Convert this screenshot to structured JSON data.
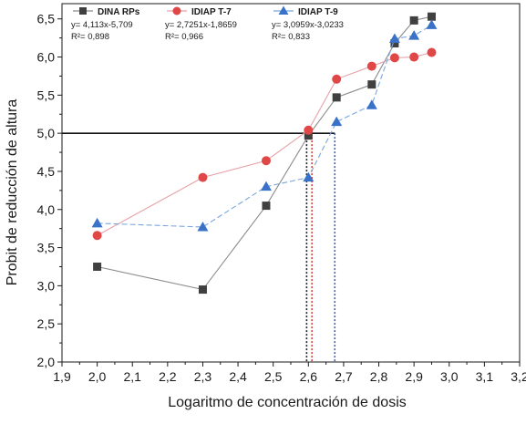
{
  "chart_data": {
    "type": "line",
    "xlabel": "Logaritmo de concentración de dosis",
    "ylabel": "Probit de reducción de altura",
    "xlim": [
      1.9,
      3.2
    ],
    "ylim": [
      2.0,
      6.7
    ],
    "x_ticks": [
      "1,9",
      "2,0",
      "2,1",
      "2,2",
      "2,3",
      "2,4",
      "2,5",
      "2,6",
      "2,7",
      "2,8",
      "2,9",
      "3,0",
      "3,1",
      "3,2"
    ],
    "y_ticks": [
      "2,0",
      "2,5",
      "3,0",
      "3,5",
      "4,0",
      "4,5",
      "5,0",
      "5,5",
      "6,0",
      "6,5"
    ],
    "grid": false,
    "legend_position": "top",
    "reference_line_y": 5.0,
    "series": [
      {
        "name": "DINA RPs",
        "equation": "y= 4,113x-5,709",
        "r2": "R²= 0,898",
        "marker": "square",
        "color": "#404040",
        "line_color": "#8c8c8c",
        "x": [
          2.0,
          2.3,
          2.48,
          2.6,
          2.68,
          2.78,
          2.845,
          2.9,
          2.95
        ],
        "y": [
          3.25,
          2.95,
          4.05,
          4.97,
          5.47,
          5.64,
          6.18,
          6.48,
          6.53
        ],
        "crossing_x": 2.595
      },
      {
        "name": "IDIAP T-7",
        "equation": "y= 2,7251x-1,8659",
        "r2": "R²= 0,966",
        "marker": "circle",
        "color": "#e04848",
        "line_color": "#e8a0a8",
        "x": [
          2.0,
          2.3,
          2.48,
          2.6,
          2.68,
          2.78,
          2.845,
          2.9,
          2.95
        ],
        "y": [
          3.66,
          4.42,
          4.64,
          5.04,
          5.71,
          5.88,
          5.99,
          6.0,
          6.06
        ],
        "crossing_x": 2.61
      },
      {
        "name": "IDIAP T-9",
        "equation": "y= 3,0959x-3,0233",
        "r2": "R²= 0,833",
        "marker": "triangle",
        "color": "#3a72c8",
        "line_color": "#7aa6dc",
        "x": [
          2.0,
          2.3,
          2.48,
          2.6,
          2.68,
          2.78,
          2.845,
          2.9,
          2.95
        ],
        "y": [
          3.82,
          3.77,
          4.3,
          4.42,
          5.15,
          5.37,
          6.24,
          6.28,
          6.42
        ],
        "crossing_x": 2.675
      }
    ]
  }
}
